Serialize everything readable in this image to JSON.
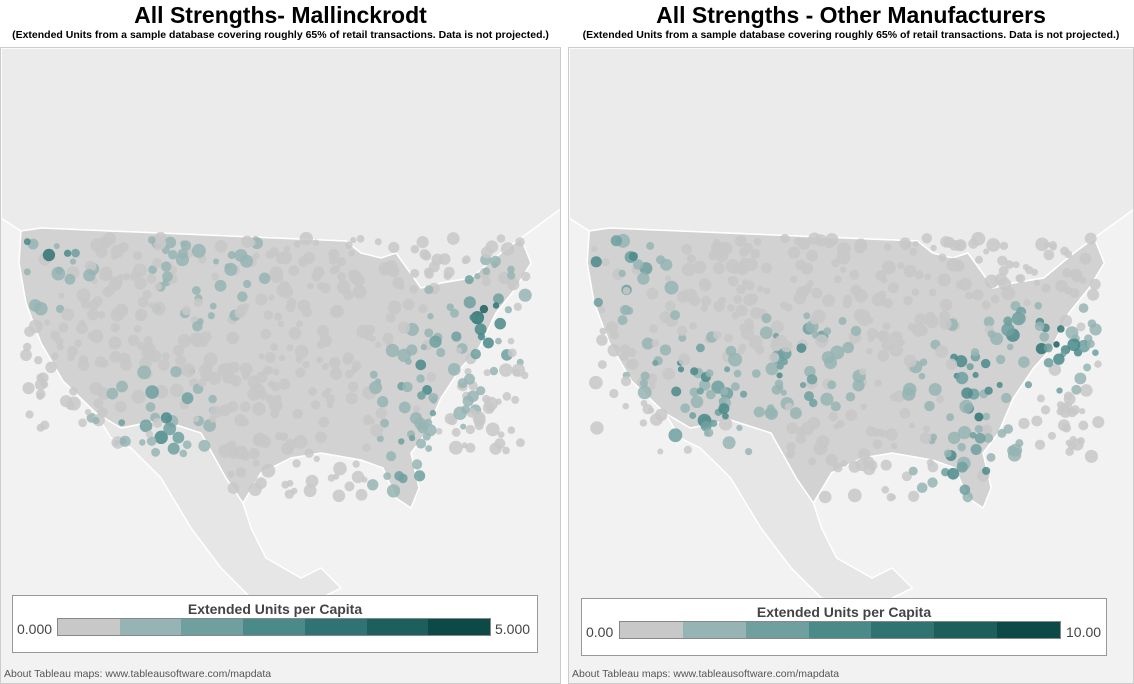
{
  "colors": [
    "#c8c8c8",
    "#97b4b4",
    "#6fa09f",
    "#4a8a88",
    "#2f7472",
    "#1c5f5d",
    "#0d4947"
  ],
  "panels": [
    {
      "title": "All Strengths- Mallinckrodt",
      "subtitle": "(Extended Units from a sample database covering roughly 65% of retail transactions. Data is not projected.)",
      "legend": {
        "title": "Extended Units per Capita",
        "min": "0.000",
        "max": "5.000"
      },
      "credit": "About Tableau maps: www.tableausoftware.com/mapdata"
    },
    {
      "title": "All Strengths - Other Manufacturers",
      "subtitle": "(Extended Units from a sample database covering roughly 65% of retail transactions. Data is not projected.)",
      "legend": {
        "title": "Extended Units per Capita",
        "min": "0.00",
        "max": "10.00"
      },
      "credit": "About Tableau maps: www.tableausoftware.com/mapdata"
    }
  ]
}
